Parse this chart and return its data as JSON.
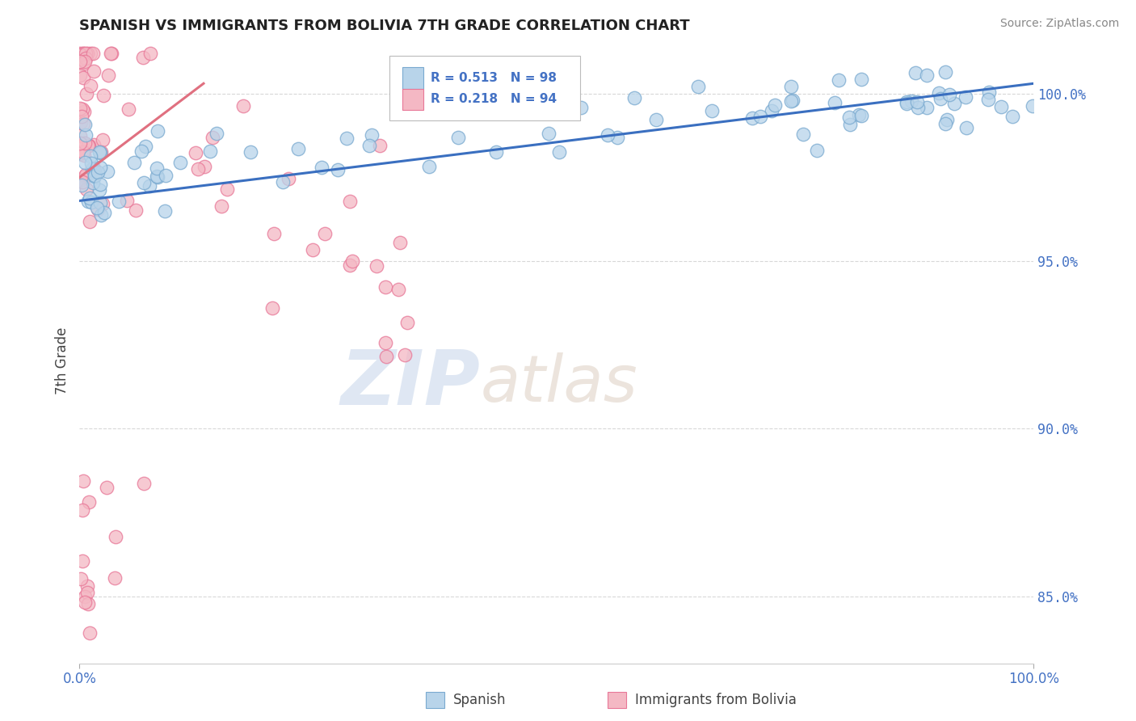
{
  "title": "SPANISH VS IMMIGRANTS FROM BOLIVIA 7TH GRADE CORRELATION CHART",
  "source": "Source: ZipAtlas.com",
  "ylabel": "7th Grade",
  "xlim": [
    0.0,
    100.0
  ],
  "ylim": [
    83.0,
    101.5
  ],
  "yticks": [
    85.0,
    90.0,
    95.0,
    100.0
  ],
  "ytick_labels": [
    "85.0%",
    "90.0%",
    "95.0%",
    "100.0%"
  ],
  "series_spanish": {
    "color": "#b8d4ea",
    "edge_color": "#7aaad0",
    "R": 0.513,
    "N": 98
  },
  "series_bolivia": {
    "color": "#f4b8c4",
    "edge_color": "#e87898",
    "R": 0.218,
    "N": 94
  },
  "trendline_spanish": {
    "color": "#3a6fc0",
    "x_start": 0.0,
    "x_end": 100.0,
    "y_start": 96.8,
    "y_end": 100.3
  },
  "trendline_bolivia": {
    "color": "#e07080",
    "x_start": 0.0,
    "x_end": 13.0,
    "y_start": 97.5,
    "y_end": 100.3
  },
  "watermark_zip": "ZIP",
  "watermark_atlas": "atlas",
  "watermark_color": "#c8d8ee",
  "background_color": "#ffffff",
  "grid_color": "#c8c8c8",
  "title_color": "#222222",
  "axis_label_color": "#444444",
  "tick_color": "#4472c4"
}
